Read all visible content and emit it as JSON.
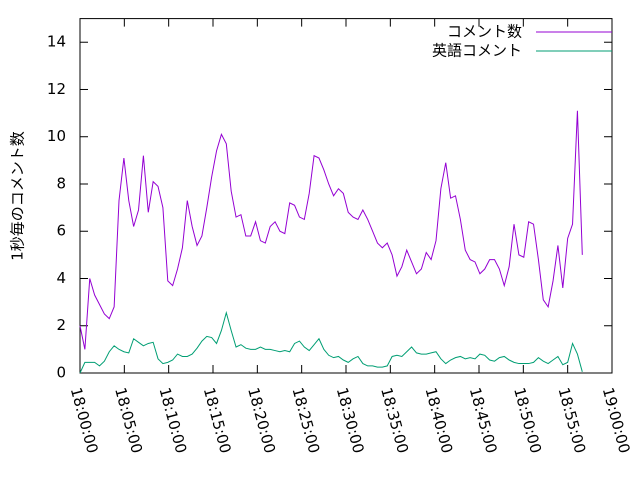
{
  "chart_data": {
    "type": "line",
    "ylabel": "1秒毎のコメント数",
    "x": [
      "18:00:00",
      "18:00:33",
      "18:01:06",
      "18:01:39",
      "18:02:12",
      "18:02:45",
      "18:03:18",
      "18:03:51",
      "18:04:24",
      "18:04:57",
      "18:05:30",
      "18:06:03",
      "18:06:36",
      "18:07:09",
      "18:07:42",
      "18:08:15",
      "18:08:48",
      "18:09:21",
      "18:09:54",
      "18:10:27",
      "18:11:00",
      "18:11:33",
      "18:12:06",
      "18:12:39",
      "18:13:12",
      "18:13:45",
      "18:14:18",
      "18:14:51",
      "18:15:24",
      "18:15:57",
      "18:16:30",
      "18:17:03",
      "18:17:36",
      "18:18:09",
      "18:18:42",
      "18:19:15",
      "18:19:48",
      "18:20:21",
      "18:20:54",
      "18:21:27",
      "18:22:00",
      "18:22:33",
      "18:23:06",
      "18:23:39",
      "18:24:12",
      "18:24:45",
      "18:25:18",
      "18:25:51",
      "18:26:24",
      "18:26:57",
      "18:27:30",
      "18:28:03",
      "18:28:36",
      "18:29:09",
      "18:29:42",
      "18:30:15",
      "18:30:48",
      "18:31:21",
      "18:31:54",
      "18:32:27",
      "18:33:00",
      "18:33:33",
      "18:34:06",
      "18:34:39",
      "18:35:12",
      "18:35:45",
      "18:36:18",
      "18:36:51",
      "18:37:24",
      "18:37:57",
      "18:38:30",
      "18:39:03",
      "18:39:36",
      "18:40:09",
      "18:40:42",
      "18:41:15",
      "18:41:48",
      "18:42:21",
      "18:42:54",
      "18:43:27",
      "18:44:00",
      "18:44:33",
      "18:45:06",
      "18:45:39",
      "18:46:12",
      "18:46:45",
      "18:47:18",
      "18:47:51",
      "18:48:24",
      "18:48:57",
      "18:49:30",
      "18:50:03",
      "18:50:36",
      "18:51:09",
      "18:51:42",
      "18:52:15",
      "18:52:48",
      "18:53:21",
      "18:53:54",
      "18:54:27",
      "18:55:00",
      "18:55:33",
      "18:56:06",
      "18:56:39"
    ],
    "series": [
      {
        "name": "コメント数",
        "color": "#9400d3",
        "values": [
          2.0,
          1.0,
          4.0,
          3.3,
          2.9,
          2.5,
          2.3,
          2.8,
          7.3,
          9.1,
          7.3,
          6.2,
          6.9,
          9.2,
          6.8,
          8.1,
          7.9,
          7.0,
          3.9,
          3.7,
          4.4,
          5.3,
          7.3,
          6.2,
          5.4,
          5.8,
          7.0,
          8.3,
          9.4,
          10.1,
          9.7,
          7.7,
          6.6,
          6.7,
          5.8,
          5.8,
          6.4,
          5.6,
          5.5,
          6.2,
          6.4,
          6.0,
          5.9,
          7.2,
          7.1,
          6.6,
          6.5,
          7.6,
          9.2,
          9.1,
          8.6,
          8.0,
          7.5,
          7.8,
          7.6,
          6.8,
          6.6,
          6.5,
          6.9,
          6.5,
          6.0,
          5.5,
          5.3,
          5.5,
          5.0,
          4.1,
          4.5,
          5.2,
          4.7,
          4.2,
          4.4,
          5.1,
          4.8,
          5.6,
          7.8,
          8.9,
          7.4,
          7.5,
          6.5,
          5.2,
          4.8,
          4.7,
          4.2,
          4.4,
          4.8,
          4.8,
          4.4,
          3.7,
          4.5,
          6.3,
          5.0,
          4.9,
          6.4,
          6.3,
          4.8,
          3.1,
          2.8,
          3.9,
          5.4,
          3.6,
          5.7,
          6.3,
          11.1,
          5.0
        ]
      },
      {
        "name": "英語コメント",
        "color": "#009e73",
        "values": [
          0.0,
          0.45,
          0.45,
          0.45,
          0.3,
          0.5,
          0.9,
          1.15,
          1.0,
          0.9,
          0.85,
          1.45,
          1.3,
          1.15,
          1.25,
          1.3,
          0.6,
          0.4,
          0.45,
          0.55,
          0.8,
          0.7,
          0.7,
          0.8,
          1.05,
          1.35,
          1.55,
          1.5,
          1.25,
          1.8,
          2.55,
          1.8,
          1.1,
          1.2,
          1.05,
          1.0,
          1.0,
          1.1,
          1.0,
          1.0,
          0.95,
          0.9,
          0.95,
          0.9,
          1.25,
          1.35,
          1.1,
          0.95,
          1.2,
          1.45,
          1.0,
          0.75,
          0.65,
          0.7,
          0.55,
          0.45,
          0.6,
          0.7,
          0.4,
          0.3,
          0.3,
          0.25,
          0.25,
          0.3,
          0.7,
          0.75,
          0.7,
          0.9,
          1.1,
          0.85,
          0.8,
          0.8,
          0.85,
          0.9,
          0.6,
          0.4,
          0.55,
          0.65,
          0.7,
          0.6,
          0.65,
          0.6,
          0.8,
          0.75,
          0.55,
          0.5,
          0.65,
          0.7,
          0.55,
          0.45,
          0.4,
          0.4,
          0.4,
          0.45,
          0.65,
          0.5,
          0.4,
          0.55,
          0.7,
          0.35,
          0.45,
          1.25,
          0.8,
          0.05
        ]
      }
    ],
    "xlim": [
      "18:00:00",
      "19:00:00"
    ],
    "xticks": [
      "18:00:00",
      "18:05:00",
      "18:10:00",
      "18:15:00",
      "18:20:00",
      "18:25:00",
      "18:30:00",
      "18:35:00",
      "18:40:00",
      "18:45:00",
      "18:50:00",
      "18:55:00",
      "19:00:00"
    ],
    "ylim": [
      0,
      15
    ],
    "yticks": [
      0,
      2,
      4,
      6,
      8,
      10,
      12,
      14
    ],
    "legend": "top-right"
  }
}
